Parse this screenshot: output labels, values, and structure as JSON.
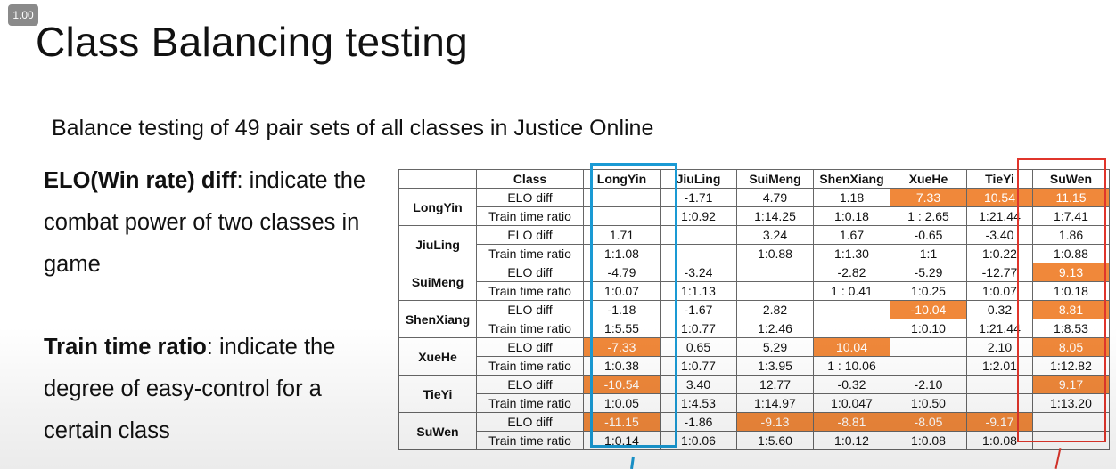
{
  "zoom_badge": "1.00",
  "title": "Class Balancing testing",
  "subtitle": "Balance testing of 49 pair sets of all classes in Justice Online",
  "definitions": {
    "elo": {
      "term": "ELO(Win rate) diff",
      "text": ": indicate the combat power of two classes in game"
    },
    "train": {
      "term": "Train time ratio",
      "text": ": indicate the degree of easy-control for a certain class"
    }
  },
  "table": {
    "corner_label": "Class",
    "columns": [
      "LongYin",
      "JiuLing",
      "SuiMeng",
      "ShenXiang",
      "XueHe",
      "TieYi",
      "SuWen"
    ],
    "metric_labels": {
      "elo": "ELO diff",
      "train": "Train time ratio"
    },
    "rows": [
      {
        "name": "LongYin",
        "elo": [
          "",
          "-1.71",
          "4.79",
          "1.18",
          "7.33",
          "10.54",
          "11.15"
        ],
        "train": [
          "",
          "1:0.92",
          "1:14.25",
          "1:0.18",
          "1 : 2.65",
          "1:21.44",
          "1:7.41"
        ]
      },
      {
        "name": "JiuLing",
        "elo": [
          "1.71",
          "",
          "3.24",
          "1.67",
          "-0.65",
          "-3.40",
          "1.86"
        ],
        "train": [
          "1:1.08",
          "",
          "1:0.88",
          "1:1.30",
          "1:1",
          "1:0.22",
          "1:0.88"
        ]
      },
      {
        "name": "SuiMeng",
        "elo": [
          "-4.79",
          "-3.24",
          "",
          "-2.82",
          "-5.29",
          "-12.77",
          "9.13"
        ],
        "train": [
          "1:0.07",
          "1:1.13",
          "",
          "1 : 0.41",
          "1:0.25",
          "1:0.07",
          "1:0.18"
        ]
      },
      {
        "name": "ShenXiang",
        "elo": [
          "-1.18",
          "-1.67",
          "2.82",
          "",
          "-10.04",
          "0.32",
          "8.81"
        ],
        "train": [
          "1:5.55",
          "1:0.77",
          "1:2.46",
          "",
          "1:0.10",
          "1:21.44",
          "1:8.53"
        ]
      },
      {
        "name": "XueHe",
        "elo": [
          "-7.33",
          "0.65",
          "5.29",
          "10.04",
          "",
          "2.10",
          "8.05"
        ],
        "train": [
          "1:0.38",
          "1:0.77",
          "1:3.95",
          "1 : 10.06",
          "",
          "1:2.01",
          "1:12.82"
        ]
      },
      {
        "name": "TieYi",
        "elo": [
          "-10.54",
          "3.40",
          "12.77",
          "-0.32",
          "-2.10",
          "",
          "9.17"
        ],
        "train": [
          "1:0.05",
          "1:4.53",
          "1:14.97",
          "1:0.047",
          "1:0.50",
          "",
          "1:13.20"
        ]
      },
      {
        "name": "SuWen",
        "elo": [
          "-11.15",
          "-1.86",
          "-9.13",
          "-8.81",
          "-8.05",
          "-9.17",
          ""
        ],
        "train": [
          "1:0.14",
          "1:0.06",
          "1:5.60",
          "1:0.12",
          "1:0.08",
          "1:0.08",
          ""
        ]
      }
    ],
    "highlighted_elo_cells": [
      [
        0,
        4
      ],
      [
        0,
        5
      ],
      [
        0,
        6
      ],
      [
        2,
        6
      ],
      [
        3,
        4
      ],
      [
        3,
        6
      ],
      [
        4,
        0
      ],
      [
        4,
        3
      ],
      [
        4,
        6
      ],
      [
        5,
        0
      ],
      [
        5,
        6
      ],
      [
        6,
        0
      ],
      [
        6,
        2
      ],
      [
        6,
        3
      ],
      [
        6,
        4
      ],
      [
        6,
        5
      ]
    ],
    "highlight_color": "#f0883a",
    "annotation_colors": {
      "longyin_column": "#1a9ad4",
      "suwen_column": "#e0352b"
    }
  }
}
